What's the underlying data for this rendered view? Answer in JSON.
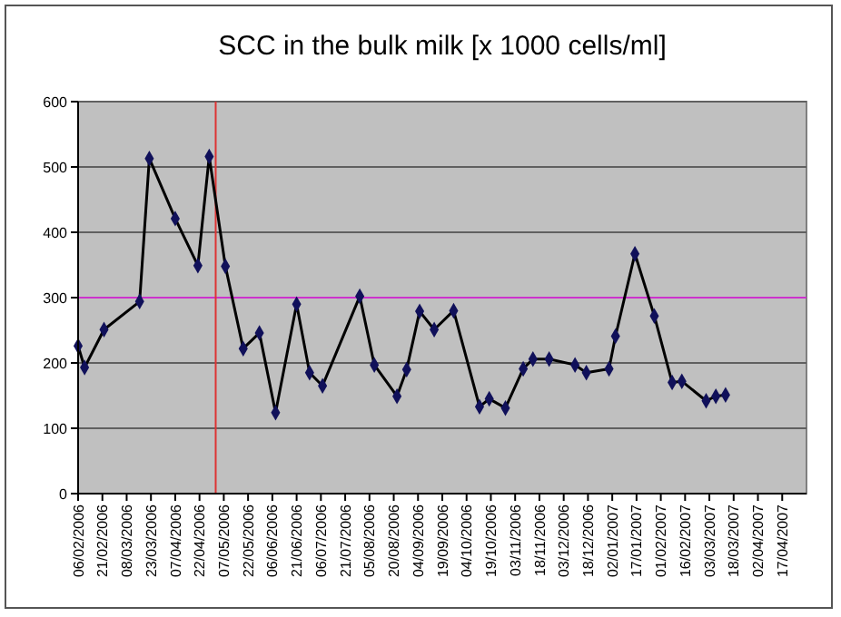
{
  "chart_data": {
    "type": "line",
    "title": "SCC in the bulk milk [x 1000 cells/ml]",
    "x": [
      "2006-02-06",
      "2006-02-10",
      "2006-02-22",
      "2006-03-16",
      "2006-03-22",
      "2006-04-07",
      "2006-04-21",
      "2006-04-28",
      "2006-05-08",
      "2006-05-19",
      "2006-05-29",
      "2006-06-08",
      "2006-06-21",
      "2006-06-29",
      "2006-07-07",
      "2006-07-30",
      "2006-08-08",
      "2006-08-22",
      "2006-08-28",
      "2006-09-05",
      "2006-09-14",
      "2006-09-26",
      "2006-10-12",
      "2006-10-18",
      "2006-10-28",
      "2006-11-08",
      "2006-11-14",
      "2006-11-24",
      "2006-12-10",
      "2006-12-17",
      "2006-12-31",
      "2007-01-04",
      "2007-01-16",
      "2007-01-28",
      "2007-02-08",
      "2007-02-14",
      "2007-03-01",
      "2007-03-07",
      "2007-03-13"
    ],
    "series": [
      {
        "color": "#10105a",
        "values": [
          226,
          193,
          251,
          294,
          513,
          421,
          349,
          516,
          348,
          222,
          246,
          124,
          290,
          185,
          165,
          302,
          197,
          149,
          190,
          279,
          251,
          280,
          133,
          145,
          131,
          191,
          206,
          206,
          197,
          185,
          191,
          241,
          367,
          272,
          170,
          172,
          142,
          149,
          151
        ]
      }
    ],
    "xlim": [
      "2006-02-06",
      "2007-05-02"
    ],
    "xticks": [
      {
        "value": "2006-02-06",
        "label": "06/02/2006"
      },
      {
        "value": "2006-02-21",
        "label": "21/02/2006"
      },
      {
        "value": "2006-03-08",
        "label": "08/03/2006"
      },
      {
        "value": "2006-03-23",
        "label": "23/03/2006"
      },
      {
        "value": "2006-04-07",
        "label": "07/04/2006"
      },
      {
        "value": "2006-04-22",
        "label": "22/04/2006"
      },
      {
        "value": "2006-05-07",
        "label": "07/05/2006"
      },
      {
        "value": "2006-05-22",
        "label": "22/05/2006"
      },
      {
        "value": "2006-06-06",
        "label": "06/06/2006"
      },
      {
        "value": "2006-06-21",
        "label": "21/06/2006"
      },
      {
        "value": "2006-07-06",
        "label": "06/07/2006"
      },
      {
        "value": "2006-07-21",
        "label": "21/07/2006"
      },
      {
        "value": "2006-08-05",
        "label": "05/08/2006"
      },
      {
        "value": "2006-08-20",
        "label": "20/08/2006"
      },
      {
        "value": "2006-09-04",
        "label": "04/09/2006"
      },
      {
        "value": "2006-09-19",
        "label": "19/09/2006"
      },
      {
        "value": "2006-10-04",
        "label": "04/10/2006"
      },
      {
        "value": "2006-10-19",
        "label": "19/10/2006"
      },
      {
        "value": "2006-11-03",
        "label": "03/11/2006"
      },
      {
        "value": "2006-11-18",
        "label": "18/11/2006"
      },
      {
        "value": "2006-12-03",
        "label": "03/12/2006"
      },
      {
        "value": "2006-12-18",
        "label": "18/12/2006"
      },
      {
        "value": "2007-01-02",
        "label": "02/01/2007"
      },
      {
        "value": "2007-01-17",
        "label": "17/01/2007"
      },
      {
        "value": "2007-02-01",
        "label": "01/02/2007"
      },
      {
        "value": "2007-02-16",
        "label": "16/02/2007"
      },
      {
        "value": "2007-03-03",
        "label": "03/03/2007"
      },
      {
        "value": "2007-03-18",
        "label": "18/03/2007"
      },
      {
        "value": "2007-04-02",
        "label": "02/04/2007"
      },
      {
        "value": "2007-04-17",
        "label": "17/04/2007"
      }
    ],
    "ylim": [
      0,
      600
    ],
    "yticks": [
      0,
      100,
      200,
      300,
      400,
      500,
      600
    ],
    "ref_lines": [
      {
        "axis": "y",
        "value": 300,
        "color": "#cc33cc"
      },
      {
        "axis": "x",
        "value": "2006-05-02",
        "color": "#dd3333"
      }
    ],
    "grid": "y",
    "marker": "diamond",
    "line_style": "solid"
  }
}
